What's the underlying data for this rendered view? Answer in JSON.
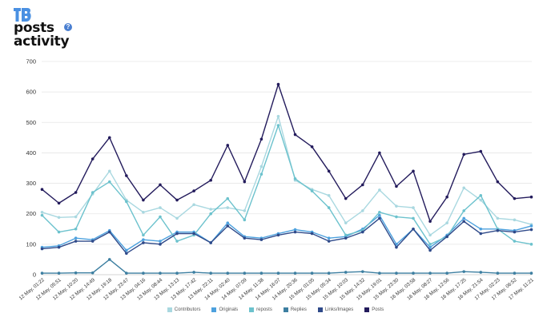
{
  "header": {
    "logo_icon": "brand-logo-icon",
    "title_line1": "posts",
    "title_line2": "activity",
    "help_icon": "question-icon"
  },
  "chart_data": {
    "type": "line",
    "ylim": [
      0,
      700
    ],
    "yticks": [
      0,
      100,
      200,
      300,
      400,
      500,
      600,
      700
    ],
    "grid": true,
    "legend_position": "bottom-center",
    "x_labels_rotated": true,
    "categories": [
      "12 May, 01:22",
      "12 May, 05:51",
      "12 May, 10:20",
      "12 May, 14:49",
      "12 May, 19:18",
      "12 May, 23:47",
      "13 May, 04:16",
      "13 May, 08:44",
      "13 May, 13:13",
      "13 May, 17:42",
      "13 May, 22:11",
      "14 May, 02:40",
      "14 May, 07:09",
      "14 May, 11:38",
      "14 May, 16:07",
      "14 May, 20:36",
      "15 May, 01:05",
      "15 May, 05:34",
      "15 May, 10:03",
      "15 May, 14:32",
      "15 May, 19:01",
      "15 May, 23:30",
      "16 May, 03:58",
      "16 May, 08:27",
      "16 May, 12:56",
      "16 May, 17:25",
      "16 May, 21:54",
      "17 May, 02:23",
      "17 May, 06:52",
      "17 May, 11:21"
    ],
    "series": [
      {
        "name": "Contributors",
        "color": "#a9d8e0",
        "values": [
          205,
          188,
          190,
          265,
          340,
          245,
          205,
          220,
          185,
          230,
          215,
          220,
          210,
          355,
          520,
          310,
          280,
          260,
          170,
          210,
          278,
          225,
          220,
          130,
          170,
          285,
          245,
          185,
          180,
          165
        ]
      },
      {
        "name": "Originals",
        "color": "#4da1de",
        "values": [
          90,
          95,
          120,
          115,
          145,
          80,
          115,
          110,
          140,
          140,
          105,
          170,
          125,
          120,
          135,
          148,
          140,
          120,
          125,
          150,
          195,
          100,
          150,
          90,
          130,
          185,
          150,
          150,
          145,
          160
        ]
      },
      {
        "name": "reposts",
        "color": "#6cc2cd",
        "values": [
          195,
          140,
          150,
          270,
          305,
          240,
          130,
          190,
          110,
          130,
          200,
          250,
          180,
          330,
          490,
          315,
          275,
          220,
          130,
          145,
          205,
          190,
          185,
          100,
          125,
          210,
          260,
          150,
          110,
          100
        ]
      },
      {
        "name": "Replies",
        "color": "#3d7fa1",
        "values": [
          5,
          5,
          6,
          6,
          50,
          5,
          5,
          5,
          5,
          8,
          5,
          5,
          5,
          5,
          5,
          5,
          5,
          5,
          8,
          10,
          5,
          5,
          5,
          5,
          5,
          10,
          8,
          5,
          5,
          5
        ]
      },
      {
        "name": "Links/Images",
        "color": "#2f4a8a",
        "values": [
          85,
          90,
          110,
          110,
          140,
          70,
          105,
          100,
          135,
          135,
          105,
          160,
          120,
          115,
          130,
          140,
          135,
          110,
          120,
          140,
          185,
          90,
          150,
          80,
          125,
          175,
          135,
          145,
          140,
          148
        ]
      },
      {
        "name": "Posts",
        "color": "#231b5c",
        "values": [
          280,
          235,
          270,
          380,
          450,
          325,
          245,
          295,
          245,
          275,
          310,
          425,
          305,
          445,
          625,
          460,
          420,
          340,
          250,
          295,
          400,
          290,
          340,
          175,
          255,
          395,
          405,
          305,
          250,
          255
        ]
      }
    ]
  }
}
